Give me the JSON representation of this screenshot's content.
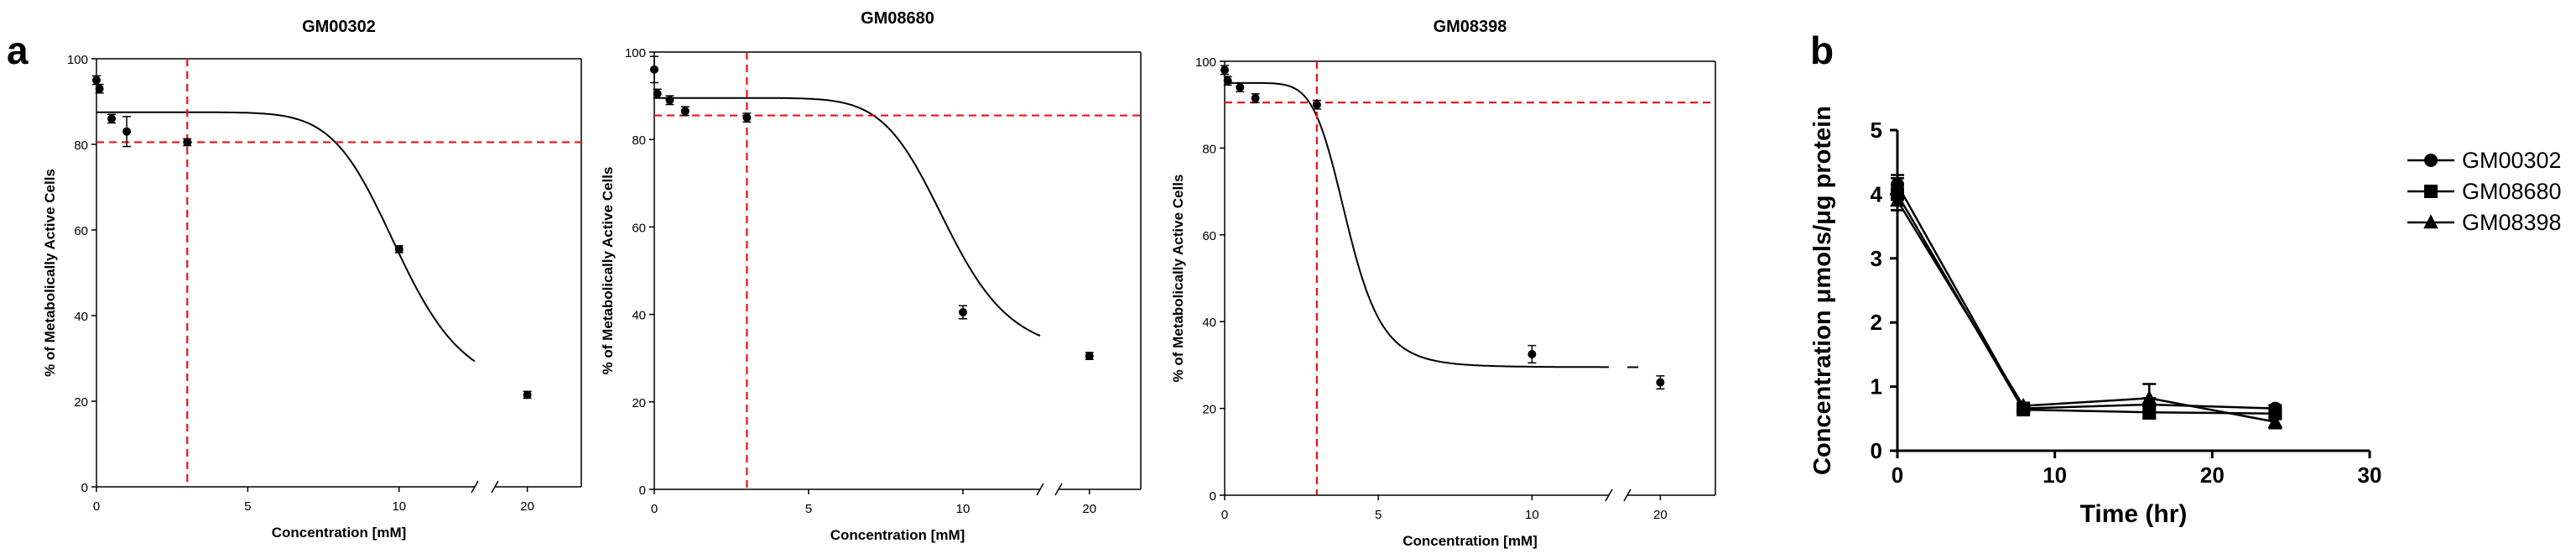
{
  "panels": {
    "a": "a",
    "b": "b"
  },
  "chart_data": [
    {
      "type": "scatter",
      "title": "GM00302",
      "xlabel": "Concentration [mM]",
      "ylabel": "% of Metabolically  Active Cells",
      "xticks": [
        "0",
        "5",
        "10",
        "20"
      ],
      "yticks": [
        "0",
        "20",
        "40",
        "60",
        "80",
        "100"
      ],
      "ylim": [
        0,
        100
      ],
      "x_axis_break": {
        "before": 12.5,
        "after": 18.5
      },
      "points": [
        {
          "x": 0,
          "y": 95,
          "err": 1
        },
        {
          "x": 0.1,
          "y": 93,
          "err": 1
        },
        {
          "x": 0.5,
          "y": 86,
          "err": 1
        },
        {
          "x": 1,
          "y": 83,
          "err": 3.5
        },
        {
          "x": 3,
          "y": 80.5,
          "err": 0.8
        },
        {
          "x": 10,
          "y": 55.5,
          "err": 0.8
        },
        {
          "x": 20,
          "y": 21.5,
          "err": 0.8
        }
      ],
      "curve": {
        "top": 87.5,
        "bottom": 21.5,
        "ec50": 10,
        "hill": 9,
        "line_end": 18.5,
        "color": "#000000"
      },
      "reference": {
        "x": 3,
        "y": 80.5,
        "color": "#e8141b"
      }
    },
    {
      "type": "scatter",
      "title": "GM08680",
      "xlabel": "Concentration [mM]",
      "ylabel": "% of Metabolically  Active Cells",
      "xticks": [
        "0",
        "5",
        "10",
        "20"
      ],
      "yticks": [
        "0",
        "20",
        "40",
        "60",
        "80",
        "100"
      ],
      "ylim": [
        0,
        100
      ],
      "x_axis_break": {
        "before": 12.5,
        "after": 18.5
      },
      "points": [
        {
          "x": 0,
          "y": 96,
          "err": 3
        },
        {
          "x": 0.1,
          "y": 90.5,
          "err": 1
        },
        {
          "x": 0.5,
          "y": 89,
          "err": 1
        },
        {
          "x": 1,
          "y": 86.5,
          "err": 1
        },
        {
          "x": 3,
          "y": 85,
          "err": 1
        },
        {
          "x": 10,
          "y": 40.5,
          "err": 1.5
        },
        {
          "x": 20,
          "y": 30.5,
          "err": 0.8
        }
      ],
      "curve": {
        "top": 89.5,
        "bottom": 30.5,
        "ec50": 9.5,
        "hill": 9,
        "line_end": 18.5,
        "color": "#000000"
      },
      "reference": {
        "x": 3,
        "y": 85.5,
        "color": "#e8141b"
      }
    },
    {
      "type": "scatter",
      "title": "GM08398",
      "xlabel": "Concentration [mM]",
      "ylabel": "% of Metabolically  Active Cells",
      "xticks": [
        "0",
        "5",
        "10",
        "20"
      ],
      "yticks": [
        "0",
        "20",
        "40",
        "60",
        "80",
        "100"
      ],
      "ylim": [
        0,
        100
      ],
      "x_axis_break": {
        "before": 12.5,
        "after": 18.5
      },
      "points": [
        {
          "x": 0,
          "y": 98,
          "err": 1
        },
        {
          "x": 0.1,
          "y": 95.5,
          "err": 1
        },
        {
          "x": 0.5,
          "y": 94,
          "err": 1
        },
        {
          "x": 1,
          "y": 91.5,
          "err": 1
        },
        {
          "x": 3,
          "y": 90,
          "err": 1
        },
        {
          "x": 10,
          "y": 32.5,
          "err": 2
        },
        {
          "x": 20,
          "y": 26,
          "err": 1.5
        }
      ],
      "curve": {
        "top": 95,
        "bottom": 29.5,
        "ec50": 4,
        "hill": 7,
        "line_end": 19,
        "color": "#000000"
      },
      "reference": {
        "x": 3,
        "y": 90.5,
        "color": "#e8141b"
      }
    },
    {
      "type": "line",
      "title": "",
      "xlabel": "Time (hr)",
      "ylabel": "Concentration μmols/μg protein",
      "xlim": [
        0,
        30
      ],
      "ylim": [
        0,
        5
      ],
      "xticks": [
        "0",
        "10",
        "20",
        "30"
      ],
      "yticks": [
        "0",
        "1",
        "2",
        "3",
        "4",
        "5"
      ],
      "x": [
        0,
        8,
        16,
        24
      ],
      "series": [
        {
          "name": "GM00302",
          "marker": "circle",
          "values": [
            4.15,
            0.66,
            0.72,
            0.66
          ],
          "errors": [
            0.15,
            0.05,
            0.1,
            0.05
          ]
        },
        {
          "name": "GM08680",
          "marker": "square",
          "values": [
            4.0,
            0.64,
            0.6,
            0.58
          ],
          "errors": [
            0.25,
            0.05,
            0.1,
            0.05
          ]
        },
        {
          "name": "GM08398",
          "marker": "triangle",
          "values": [
            3.9,
            0.7,
            0.82,
            0.45
          ],
          "errors": [
            0.15,
            0.05,
            0.22,
            0.1
          ]
        }
      ],
      "legend_position": "right"
    }
  ]
}
